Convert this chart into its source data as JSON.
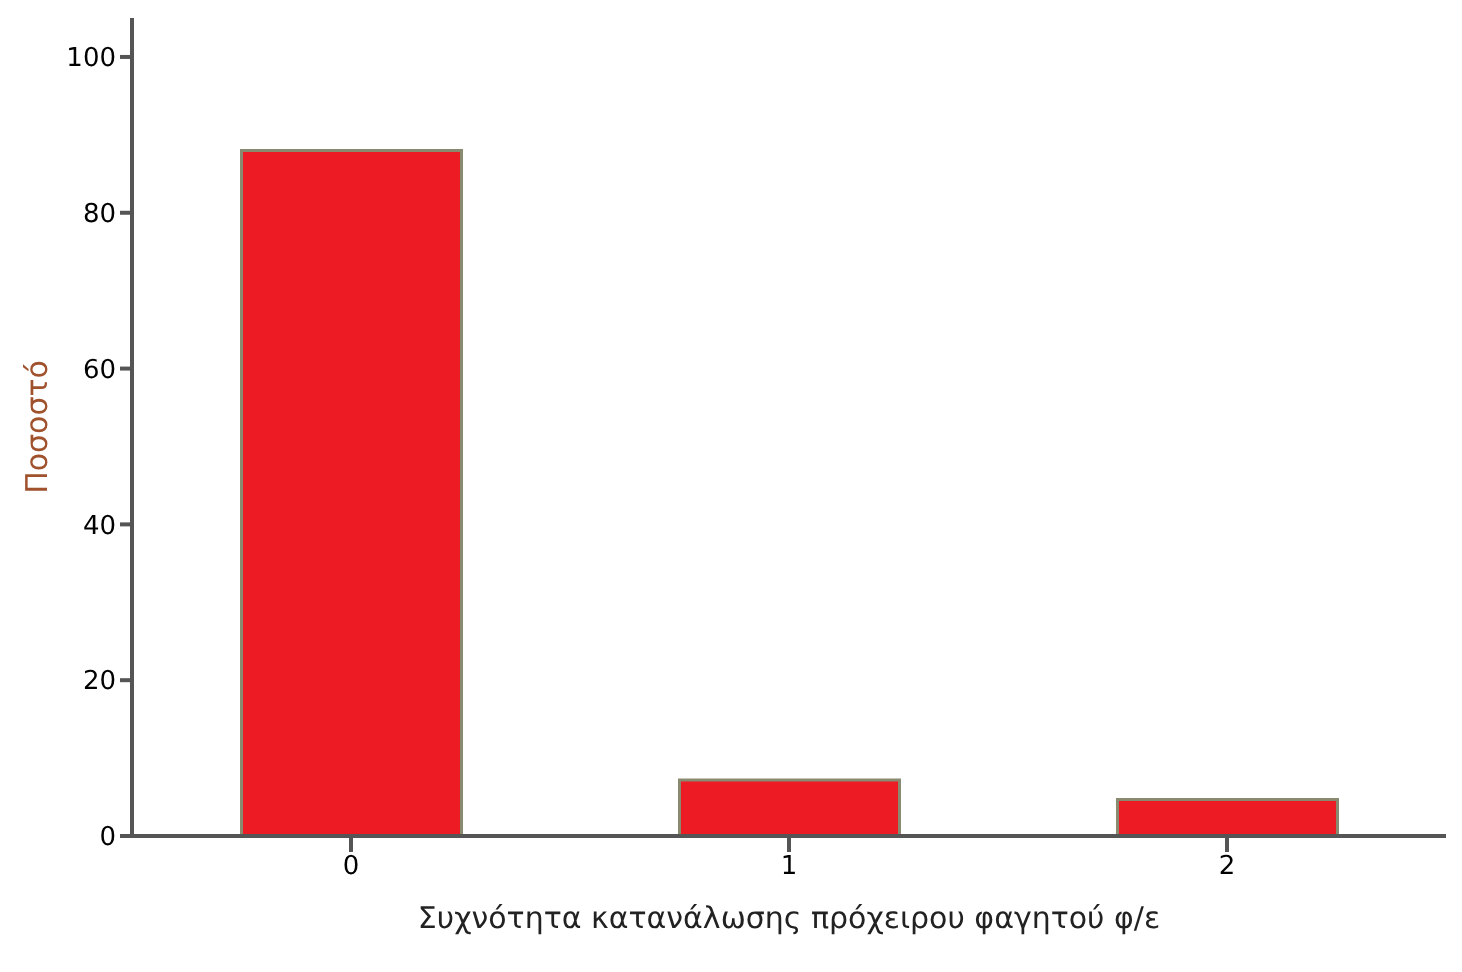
{
  "chart_data": {
    "type": "bar",
    "xlabel": "Συχνότητα κατανάλωσης πρόχειρου φαγητού φ/ε",
    "ylabel": "Ποσοστό",
    "categories": [
      "0",
      "1",
      "2"
    ],
    "values": [
      88,
      7.2,
      4.7
    ],
    "color": "#ed1c24",
    "ylim": [
      0,
      105
    ],
    "yticks": [
      0,
      20,
      40,
      60,
      80,
      100
    ],
    "grid": false
  }
}
